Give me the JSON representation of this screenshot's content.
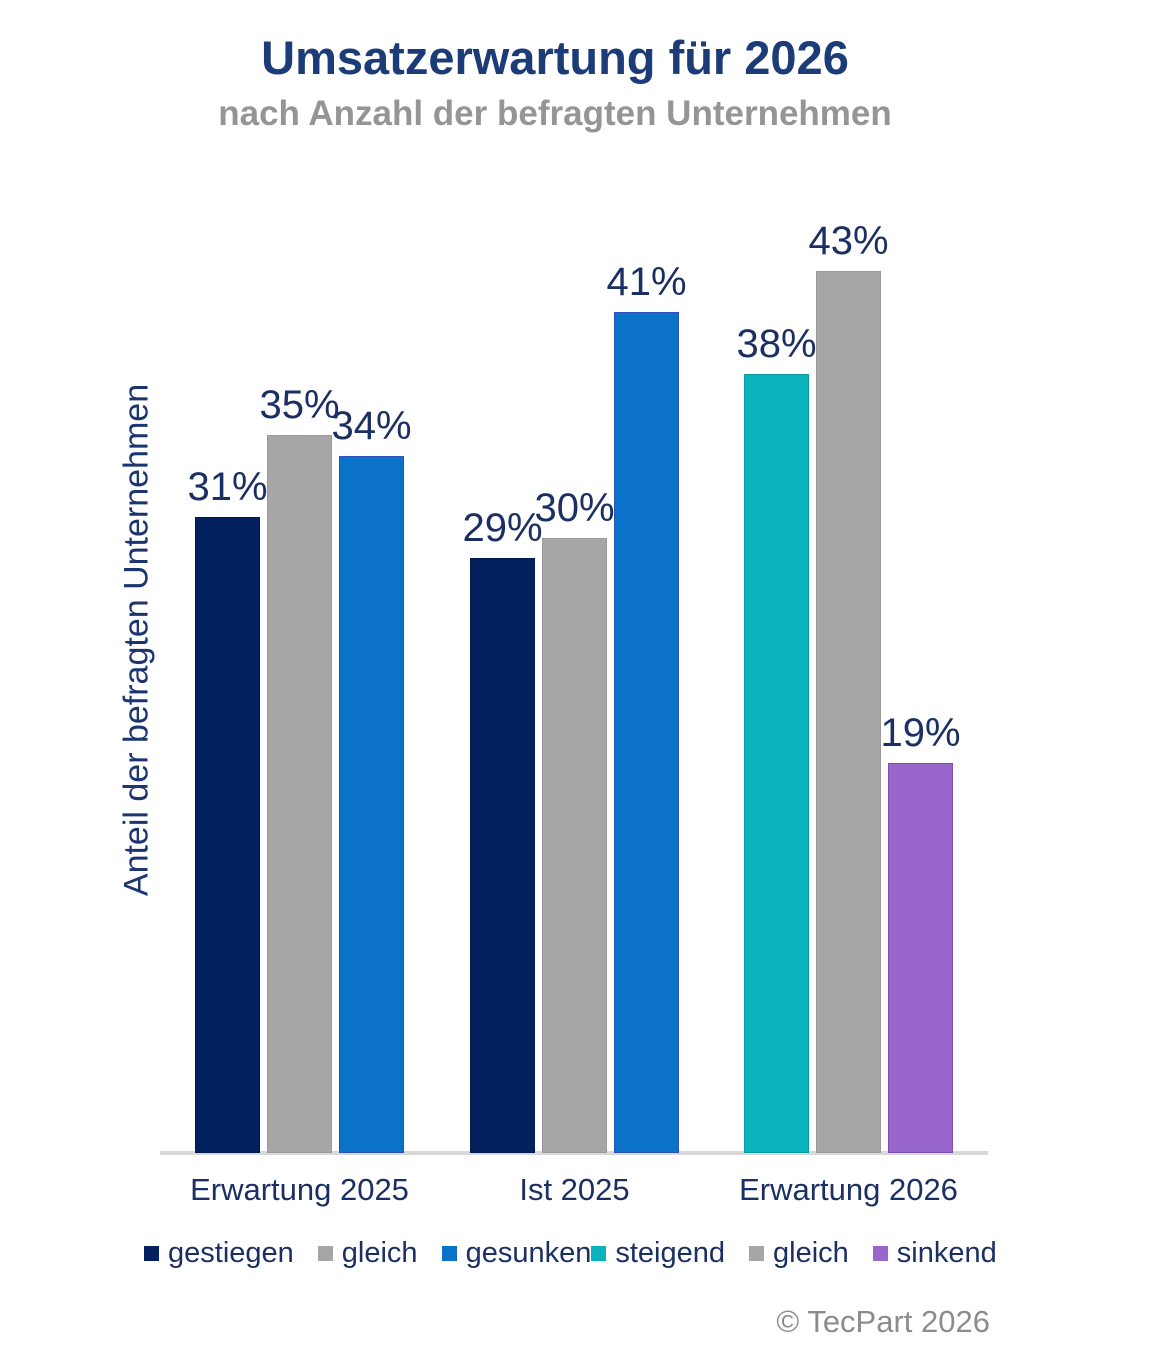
{
  "header": {
    "title": "Umsatzerwartung für 2026",
    "subtitle": "nach Anzahl der befragten Unternehmen"
  },
  "chart_data": {
    "type": "bar",
    "title": "Umsatzerwartung für 2026",
    "subtitle": "nach Anzahl der befragten Unternehmen",
    "xlabel": "",
    "ylabel": "Anteil der befragten Unternehmen",
    "unit": "%",
    "ylim": [
      0,
      45
    ],
    "grid": false,
    "legend_position": "bottom",
    "categories": [
      "Erwartung 2025",
      "Ist 2025",
      "Erwartung 2026"
    ],
    "groups": [
      {
        "category": "Erwartung 2025",
        "bars": [
          {
            "series": "gestiegen",
            "value": 31,
            "label": "31%",
            "color": "#03215f",
            "border": "#001a4d"
          },
          {
            "series": "gleich",
            "value": 35,
            "label": "35%",
            "color": "#a6a6a6",
            "border": "#9a9a9a"
          },
          {
            "series": "gesunken",
            "value": 34,
            "label": "34%",
            "color": "#0a72c8",
            "border": "#2a52b8"
          }
        ]
      },
      {
        "category": "Ist 2025",
        "bars": [
          {
            "series": "gestiegen",
            "value": 29,
            "label": "29%",
            "color": "#03215f",
            "border": "#001a4d"
          },
          {
            "series": "gleich",
            "value": 30,
            "label": "30%",
            "color": "#a6a6a6",
            "border": "#9a9a9a"
          },
          {
            "series": "gesunken",
            "value": 41,
            "label": "41%",
            "color": "#0a72c8",
            "border": "#2a52b8"
          }
        ]
      },
      {
        "category": "Erwartung 2026",
        "bars": [
          {
            "series": "steigend",
            "value": 38,
            "label": "38%",
            "color": "#0ab4bc",
            "border": "#0a9aa2"
          },
          {
            "series": "gleich",
            "value": 43,
            "label": "43%",
            "color": "#a6a6a6",
            "border": "#9a9a9a"
          },
          {
            "series": "sinkend",
            "value": 19,
            "label": "19%",
            "color": "#9966cc",
            "border": "#7b4fb5"
          }
        ]
      }
    ],
    "legend": {
      "left_group": [
        {
          "label": "gestiegen",
          "color": "#03215f"
        },
        {
          "label": "gleich",
          "color": "#a6a6a6"
        },
        {
          "label": "gesunken",
          "color": "#0a72c8"
        }
      ],
      "right_group": [
        {
          "label": "steigend",
          "color": "#0ab4bc"
        },
        {
          "label": "gleich",
          "color": "#a6a6a6"
        },
        {
          "label": "sinkend",
          "color": "#9966cc"
        }
      ]
    }
  },
  "footer": {
    "copyright": "© TecPart 2026"
  }
}
